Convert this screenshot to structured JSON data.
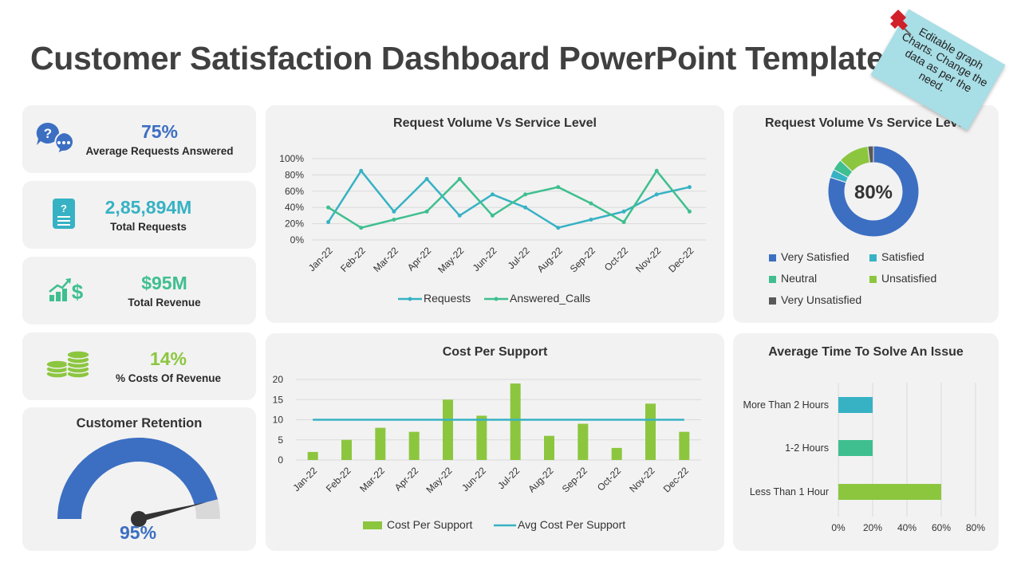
{
  "slide_title": "Customer Satisfaction Dashboard PowerPoint Template",
  "sticky_note": "Editable graph Charts. Change the data as per the need.",
  "kpis": [
    {
      "value": "75%",
      "label": "Average Requests Answered",
      "color": "#3c6fc2",
      "icon": "chat-question-icon"
    },
    {
      "value": "2,85,894M",
      "label": "Total Requests",
      "color": "#37b2c4",
      "icon": "request-document-icon"
    },
    {
      "value": "$95M",
      "label": "Total Revenue",
      "color": "#3fbf8f",
      "icon": "revenue-growth-icon"
    },
    {
      "value": "14%",
      "label": "% Costs Of Revenue",
      "color": "#8cc63f",
      "icon": "coin-stack-icon"
    }
  ],
  "retention": {
    "title": "Customer Retention",
    "value": "95%",
    "fraction": 0.95
  },
  "colors": {
    "blue": "#3c6fc2",
    "teal": "#37b2c4",
    "green": "#3fbf8f",
    "lime": "#8cc63f",
    "dark": "#595959"
  },
  "chart_data": [
    {
      "type": "line",
      "title": "Request Volume Vs Service Level",
      "categories": [
        "Jan-22",
        "Feb-22",
        "Mar-22",
        "Apr-22",
        "May-22",
        "Jun-22",
        "Jul-22",
        "Aug-22",
        "Sep-22",
        "Oct-22",
        "Nov-22",
        "Dec-22"
      ],
      "yticks": [
        "0%",
        "20%",
        "40%",
        "60%",
        "80%",
        "100%"
      ],
      "ylim": [
        0,
        100
      ],
      "grid": true,
      "legend": "bottom",
      "series": [
        {
          "name": "Requests",
          "color": "#37b2c4",
          "values": [
            22,
            85,
            35,
            75,
            30,
            56,
            40,
            15,
            25,
            35,
            56,
            65
          ]
        },
        {
          "name": "Answered_Calls",
          "color": "#3fbf8f",
          "values": [
            40,
            15,
            25,
            35,
            75,
            30,
            56,
            65,
            45,
            22,
            85,
            35
          ]
        }
      ]
    },
    {
      "type": "pie",
      "title": "Request Volume Vs Service Level",
      "center_label": "80%",
      "legend": "bottom",
      "slices": [
        {
          "name": "Very Satisfied",
          "value": 80,
          "color": "#3c6fc2"
        },
        {
          "name": "Satisfied",
          "value": 3,
          "color": "#37b2c4"
        },
        {
          "name": "Neutral",
          "value": 4,
          "color": "#3fbf8f"
        },
        {
          "name": "Unsatisfied",
          "value": 11,
          "color": "#8cc63f"
        },
        {
          "name": "Very Unsatisfied",
          "value": 2,
          "color": "#595959"
        }
      ]
    },
    {
      "type": "bar",
      "title": "Cost Per Support",
      "categories": [
        "Jan-22",
        "Feb-22",
        "Mar-22",
        "Apr-22",
        "May-22",
        "Jun-22",
        "Jul-22",
        "Aug-22",
        "Sep-22",
        "Oct-22",
        "Nov-22",
        "Dec-22"
      ],
      "yticks": [
        "0",
        "5",
        "10",
        "15",
        "20"
      ],
      "ylim": [
        0,
        20
      ],
      "grid": true,
      "legend": "bottom",
      "series": [
        {
          "name": "Cost Per Support",
          "type": "bar",
          "color": "#8cc63f",
          "values": [
            2,
            5,
            8,
            7,
            15,
            11,
            19,
            6,
            9,
            3,
            14,
            7
          ]
        },
        {
          "name": "Avg Cost Per Support",
          "type": "line",
          "color": "#37b2c4",
          "values": [
            10,
            10,
            10,
            10,
            10,
            10,
            10,
            10,
            10,
            10,
            10,
            10
          ]
        }
      ]
    },
    {
      "type": "bar",
      "orientation": "horizontal",
      "title": "Average Time To Solve An Issue",
      "categories": [
        "More Than 2 Hours",
        "1-2 Hours",
        "Less Than 1 Hour"
      ],
      "values": [
        20,
        20,
        60
      ],
      "colors": [
        "#37b2c4",
        "#3fbf8f",
        "#8cc63f"
      ],
      "xticks": [
        "0%",
        "20%",
        "40%",
        "60%",
        "80%"
      ],
      "xlim": [
        0,
        80
      ],
      "grid": true
    }
  ]
}
